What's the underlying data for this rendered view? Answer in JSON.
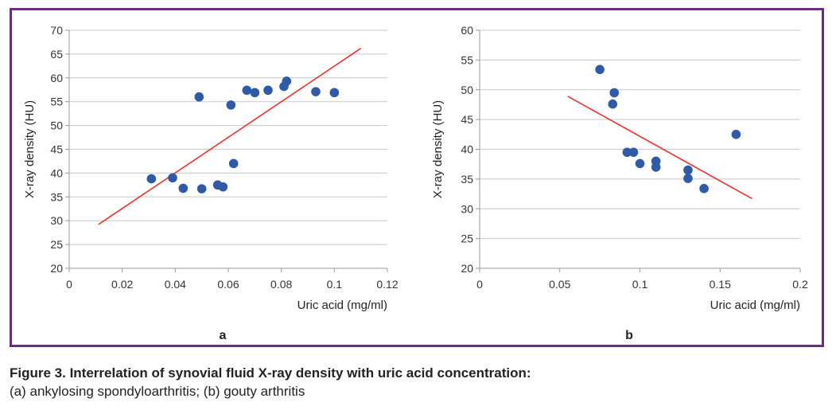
{
  "colors": {
    "frame": "#6a2d86",
    "points": "#2e5aa7",
    "trend": "#e8312f",
    "grid": "#c8c8c8",
    "axis": "#999999"
  },
  "caption": {
    "title": "Figure 3. Interrelation of synovial fluid X-ray density with uric acid concentration:",
    "text": "(a) ankylosing spondyloarthritis; (b) gouty arthritis"
  },
  "chart_data": [
    {
      "type": "scatter",
      "panel_label": "a",
      "xlabel": "Uric acid (mg/ml)",
      "ylabel": "X-ray density (HU)",
      "xlim": [
        0,
        0.12
      ],
      "ylim": [
        20,
        70
      ],
      "x_ticks": [
        0,
        0.02,
        0.04,
        0.06,
        0.08,
        0.1,
        0.12
      ],
      "x_tick_labels": [
        "0",
        "0.02",
        "0.04",
        "0.06",
        "0.08",
        "0.1",
        "0.12"
      ],
      "y_ticks": [
        20,
        25,
        30,
        35,
        40,
        45,
        50,
        55,
        60,
        65,
        70
      ],
      "y_tick_labels": [
        "20",
        "25",
        "30",
        "35",
        "40",
        "45",
        "50",
        "55",
        "60",
        "65",
        "70"
      ],
      "grid": "horizontal",
      "points": [
        {
          "x": 0.031,
          "y": 38.8
        },
        {
          "x": 0.039,
          "y": 39.0
        },
        {
          "x": 0.043,
          "y": 36.8
        },
        {
          "x": 0.049,
          "y": 56.0
        },
        {
          "x": 0.05,
          "y": 36.7
        },
        {
          "x": 0.056,
          "y": 37.5
        },
        {
          "x": 0.058,
          "y": 37.1
        },
        {
          "x": 0.061,
          "y": 54.3
        },
        {
          "x": 0.062,
          "y": 42.0
        },
        {
          "x": 0.067,
          "y": 57.4
        },
        {
          "x": 0.07,
          "y": 56.9
        },
        {
          "x": 0.075,
          "y": 57.4
        },
        {
          "x": 0.081,
          "y": 58.2
        },
        {
          "x": 0.082,
          "y": 59.3
        },
        {
          "x": 0.093,
          "y": 57.1
        },
        {
          "x": 0.1,
          "y": 56.9
        }
      ],
      "trendline": {
        "x": [
          0.011,
          0.11
        ],
        "y": [
          29.2,
          66.2
        ]
      }
    },
    {
      "type": "scatter",
      "panel_label": "b",
      "xlabel": "Uric acid (mg/ml)",
      "ylabel": "X-ray density (HU)",
      "xlim": [
        0,
        0.2
      ],
      "ylim": [
        20,
        60
      ],
      "x_ticks": [
        0,
        0.05,
        0.1,
        0.15,
        0.2
      ],
      "x_tick_labels": [
        "0",
        "0.05",
        "0.1",
        "0.15",
        "0.2"
      ],
      "y_ticks": [
        20,
        25,
        30,
        35,
        40,
        45,
        50,
        55,
        60
      ],
      "y_tick_labels": [
        "20",
        "25",
        "30",
        "35",
        "40",
        "45",
        "50",
        "55",
        "60"
      ],
      "grid": "horizontal",
      "points": [
        {
          "x": 0.075,
          "y": 53.4
        },
        {
          "x": 0.083,
          "y": 47.6
        },
        {
          "x": 0.084,
          "y": 49.5
        },
        {
          "x": 0.092,
          "y": 39.5
        },
        {
          "x": 0.096,
          "y": 39.5
        },
        {
          "x": 0.1,
          "y": 37.6
        },
        {
          "x": 0.11,
          "y": 38.0
        },
        {
          "x": 0.11,
          "y": 37.0
        },
        {
          "x": 0.13,
          "y": 36.5
        },
        {
          "x": 0.13,
          "y": 35.1
        },
        {
          "x": 0.14,
          "y": 33.4
        },
        {
          "x": 0.16,
          "y": 42.5
        }
      ],
      "trendline": {
        "x": [
          0.055,
          0.17
        ],
        "y": [
          48.9,
          31.7
        ]
      }
    }
  ]
}
